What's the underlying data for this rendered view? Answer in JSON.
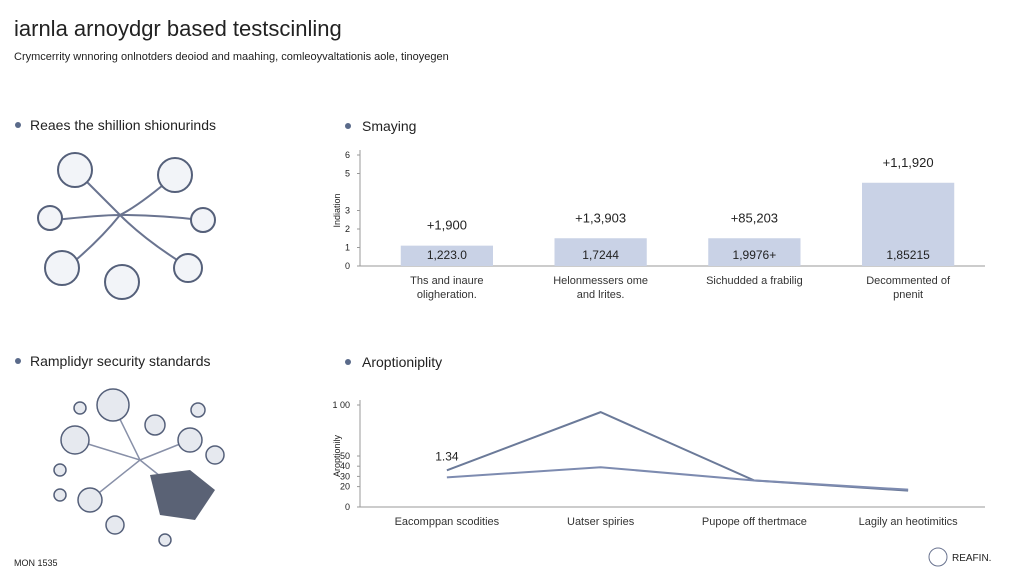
{
  "header": {
    "title": "iarnla arnoydgr based testscinling",
    "subtitle": "Crymcerrity wnnoring onlnotders deoiod and maahing, comleoyvaltationis aole, tinoyegen"
  },
  "sections": [
    {
      "title": "Reaes the shillion shionurinds"
    },
    {
      "title": "Ramplidyr security standards"
    }
  ],
  "footer": {
    "left": "MON 1535",
    "right": "REAFIN."
  },
  "chart_data": [
    {
      "type": "bar",
      "title": "Smaying",
      "y_label": "Indiation",
      "categories": [
        "Ths and inaure oligheration.",
        "Helonmessers ome and lrites.",
        "Sichudded a frabilig",
        "Decommented of pnenit"
      ],
      "values": [
        1.1,
        1.5,
        1.5,
        4.5
      ],
      "color": "#c9d2e6",
      "top_labels": [
        "+1,900",
        "+1,3,903",
        "+85,203",
        "+1,1,920"
      ],
      "inner_labels": [
        "1,223.0",
        "1,7244",
        "1,9976+",
        "1,85215"
      ],
      "ylim": [
        0,
        6
      ],
      "yticks": [
        0,
        1,
        2,
        3,
        5,
        6
      ]
    },
    {
      "type": "line",
      "title": "Aroptioniplity",
      "y_label": "Aroptionily",
      "categories": [
        "Eacomppan scodities",
        "Uatser spiries",
        "Pupope off thertmace",
        "Lagily an heotimitics"
      ],
      "series": [
        {
          "color": "#6b7a99",
          "values": [
            36,
            93,
            26,
            16
          ]
        },
        {
          "color": "#7d8bb0",
          "values": [
            29,
            39,
            26,
            17
          ]
        }
      ],
      "annotation": "1.34",
      "ylim": [
        0,
        100
      ],
      "yticks": [
        0,
        20,
        30,
        40,
        50,
        {
          "value": 100,
          "label": "1 00"
        }
      ]
    }
  ]
}
